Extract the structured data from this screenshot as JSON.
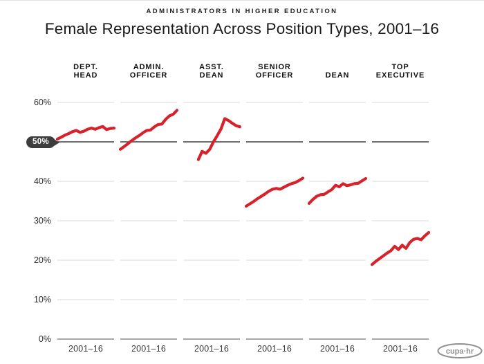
{
  "header": {
    "eyebrow": "ADMINISTRATORS IN HIGHER EDUCATION",
    "title": "Female Representation Across Position Types, 2001–16"
  },
  "logo": {
    "text": "cupa·hr",
    "color": "#8f8f8f"
  },
  "chart_data": {
    "type": "line",
    "title": "Female Representation Across Position Types, 2001–16",
    "subtitle": "ADMINISTRATORS IN HIGHER EDUCATION",
    "x_range": [
      2001,
      2016
    ],
    "x_tick_label": "2001–16",
    "ylim": [
      0,
      60
    ],
    "grid": true,
    "line_color": "#d7222b",
    "colors": {
      "grid_light": "#d9d9d9",
      "grid_zero": "#8a8a8a",
      "grid_fifty": "#3f3f3f",
      "text_dark": "#1d1d1d"
    },
    "yaxis": {
      "highlight_value": 50,
      "highlight_label": "50%",
      "ticks": [
        {
          "label": "60%",
          "value": 60
        },
        {
          "label": "50%",
          "value": 50,
          "highlight": true
        },
        {
          "label": "40%",
          "value": 40
        },
        {
          "label": "30%",
          "value": 30
        },
        {
          "label": "20%",
          "value": 20
        },
        {
          "label": "10%",
          "value": 10
        },
        {
          "label": "0%",
          "value": 0
        }
      ]
    },
    "panels": [
      {
        "name": "dept-head",
        "label_lines": [
          "DEPT.",
          "HEAD"
        ],
        "values": [
          50.7,
          51.2,
          51.7,
          52.1,
          52.6,
          52.9,
          52.4,
          52.7,
          53.2,
          53.5,
          53.2,
          53.6,
          53.9,
          53.1,
          53.4,
          53.5
        ]
      },
      {
        "name": "admin-officer",
        "label_lines": [
          "ADMIN.",
          "OFFICER"
        ],
        "values": [
          48.1,
          48.8,
          49.5,
          50.3,
          51.0,
          51.6,
          52.3,
          52.9,
          53.0,
          53.8,
          54.4,
          54.5,
          55.7,
          56.6,
          57.0,
          58.0
        ]
      },
      {
        "name": "asst-dean",
        "label_lines": [
          "ASST.",
          "DEAN"
        ],
        "values": [
          null,
          null,
          null,
          null,
          45.5,
          47.6,
          47.1,
          48.1,
          50.0,
          51.6,
          53.3,
          55.9,
          55.4,
          54.7,
          54.1,
          53.8
        ]
      },
      {
        "name": "senior-officer",
        "label_lines": [
          "SENIOR",
          "OFFICER"
        ],
        "values": [
          33.7,
          34.3,
          34.9,
          35.6,
          36.2,
          36.8,
          37.5,
          38.0,
          38.2,
          38.0,
          38.5,
          39.0,
          39.4,
          39.7,
          40.2,
          40.8
        ]
      },
      {
        "name": "dean",
        "label_lines": [
          "DEAN"
        ],
        "values": [
          34.4,
          35.4,
          36.2,
          36.6,
          36.7,
          37.3,
          37.9,
          39.0,
          38.6,
          39.4,
          38.9,
          39.1,
          39.4,
          39.5,
          40.1,
          40.7
        ]
      },
      {
        "name": "top-executive",
        "label_lines": [
          "TOP",
          "EXECUTIVE"
        ],
        "values": [
          18.9,
          19.7,
          20.4,
          21.1,
          21.8,
          22.4,
          23.5,
          22.7,
          23.8,
          23.0,
          24.5,
          25.3,
          25.5,
          25.2,
          26.2,
          27.0
        ]
      }
    ]
  }
}
